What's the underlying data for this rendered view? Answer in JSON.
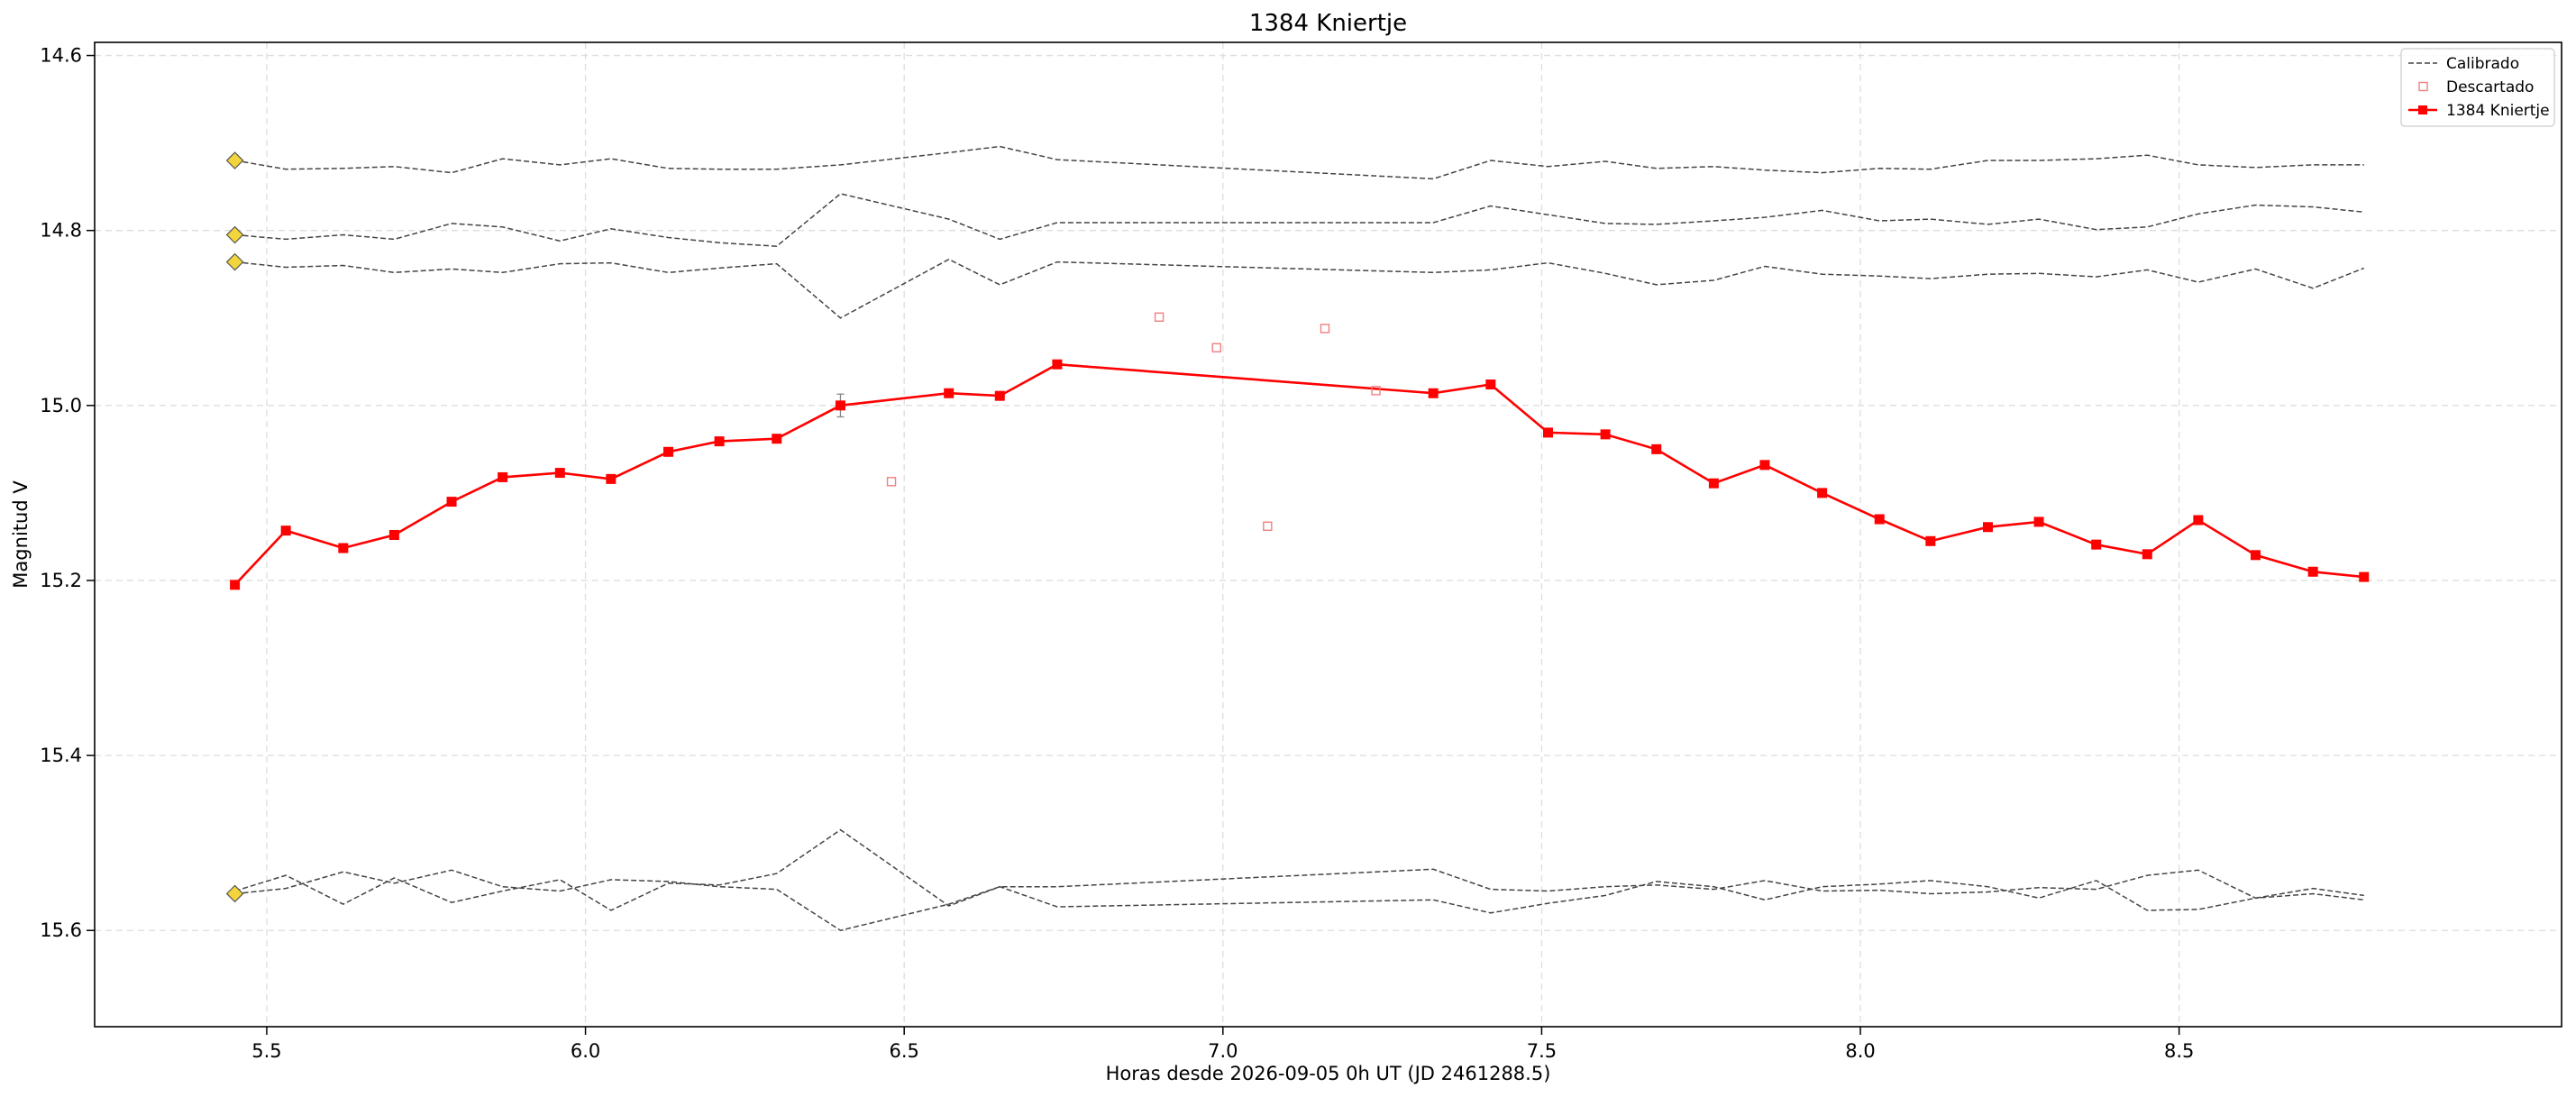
{
  "chart_data": {
    "type": "line",
    "title": "1384 Kniertje",
    "xlabel": "Horas desde 2026-09-05 0h UT (JD 2461288.5)",
    "ylabel": "Magnitud V",
    "xlim": [
      5.23,
      9.1
    ],
    "ylim": [
      15.71,
      14.585
    ],
    "y_inverted": true,
    "xticks": [
      5.5,
      6.0,
      6.5,
      7.0,
      7.5,
      8.0,
      8.5
    ],
    "xtick_labels": [
      "5.5",
      "6.0",
      "6.5",
      "7.0",
      "7.5",
      "8.0",
      "8.5"
    ],
    "yticks": [
      14.6,
      14.8,
      15.0,
      15.2,
      15.4,
      15.6
    ],
    "ytick_labels": [
      "14.6",
      "14.8",
      "15.0",
      "15.2",
      "15.4",
      "15.6"
    ],
    "grid": true,
    "legend_position": "top-right",
    "legend": [
      {
        "label": "Calibrado",
        "style": "dashed-line",
        "color": "#444444"
      },
      {
        "label": "Descartado",
        "style": "hollow-square",
        "color": "#f08080"
      },
      {
        "label": "1384 Kniertje",
        "style": "line-square",
        "color": "#ff0000"
      }
    ],
    "colors": {
      "target": "#ff0000",
      "discarded": "#f08080",
      "comparison": "#444444",
      "reference_marker": "#f2d53c",
      "grid": "#dddddd"
    },
    "target_series": {
      "name": "1384 Kniertje",
      "x": [
        5.45,
        5.53,
        5.62,
        5.7,
        5.79,
        5.87,
        5.96,
        6.04,
        6.13,
        6.21,
        6.3,
        6.4,
        6.57,
        6.65,
        6.74,
        7.33,
        7.42,
        7.51,
        7.6,
        7.68,
        7.77,
        7.85,
        7.94,
        8.03,
        8.11,
        8.2,
        8.28,
        8.37,
        8.45,
        8.53,
        8.62,
        8.71,
        8.79
      ],
      "y": [
        15.205,
        15.143,
        15.163,
        15.148,
        15.11,
        15.082,
        15.077,
        15.084,
        15.053,
        15.041,
        15.038,
        15.0,
        14.986,
        14.989,
        14.953,
        14.986,
        14.976,
        15.031,
        15.033,
        15.05,
        15.089,
        15.068,
        15.1,
        15.13,
        15.155,
        15.139,
        15.133,
        15.159,
        15.17,
        15.131,
        15.171,
        15.19,
        15.196
      ],
      "error_bars": [
        {
          "x": 6.4,
          "y": 15.0,
          "err": 0.013
        }
      ]
    },
    "discarded": {
      "name": "Descartado",
      "x": [
        6.48,
        6.9,
        6.99,
        7.07,
        7.16,
        7.24
      ],
      "y": [
        15.087,
        14.899,
        14.934,
        15.138,
        14.912,
        14.983
      ]
    },
    "comparison_series": [
      {
        "x": [
          5.45,
          5.53,
          5.62,
          5.7,
          5.79,
          5.87,
          5.96,
          6.04,
          6.13,
          6.21,
          6.3,
          6.4,
          6.57,
          6.65,
          6.74,
          7.33,
          7.42,
          7.51,
          7.6,
          7.68,
          7.77,
          7.85,
          7.94,
          8.03,
          8.11,
          8.2,
          8.28,
          8.37,
          8.45,
          8.53,
          8.62,
          8.71,
          8.79
        ],
        "y": [
          14.72,
          14.73,
          14.729,
          14.727,
          14.734,
          14.718,
          14.725,
          14.718,
          14.729,
          14.73,
          14.73,
          14.725,
          14.711,
          14.704,
          14.719,
          14.741,
          14.72,
          14.727,
          14.721,
          14.729,
          14.727,
          14.731,
          14.734,
          14.729,
          14.73,
          14.72,
          14.72,
          14.718,
          14.714,
          14.725,
          14.728,
          14.725,
          14.725
        ]
      },
      {
        "x": [
          5.45,
          5.53,
          5.62,
          5.7,
          5.79,
          5.87,
          5.96,
          6.04,
          6.13,
          6.21,
          6.3,
          6.4,
          6.57,
          6.65,
          6.74,
          7.33,
          7.42,
          7.51,
          7.6,
          7.68,
          7.77,
          7.85,
          7.94,
          8.03,
          8.11,
          8.2,
          8.28,
          8.37,
          8.45,
          8.53,
          8.62,
          8.71,
          8.79
        ],
        "y": [
          14.805,
          14.81,
          14.805,
          14.81,
          14.792,
          14.796,
          14.812,
          14.798,
          14.808,
          14.814,
          14.818,
          14.758,
          14.787,
          14.81,
          14.791,
          14.791,
          14.772,
          14.782,
          14.792,
          14.793,
          14.789,
          14.785,
          14.777,
          14.789,
          14.787,
          14.793,
          14.787,
          14.799,
          14.796,
          14.781,
          14.771,
          14.773,
          14.779
        ]
      },
      {
        "x": [
          5.45,
          5.53,
          5.62,
          5.7,
          5.79,
          5.87,
          5.96,
          6.04,
          6.13,
          6.21,
          6.3,
          6.4,
          6.57,
          6.65,
          6.74,
          7.33,
          7.42,
          7.51,
          7.6,
          7.68,
          7.77,
          7.85,
          7.94,
          8.03,
          8.11,
          8.2,
          8.28,
          8.37,
          8.45,
          8.53,
          8.62,
          8.71,
          8.79
        ],
        "y": [
          14.836,
          14.842,
          14.84,
          14.848,
          14.844,
          14.848,
          14.838,
          14.837,
          14.848,
          14.843,
          14.838,
          14.9,
          14.833,
          14.862,
          14.836,
          14.848,
          14.845,
          14.837,
          14.849,
          14.862,
          14.857,
          14.841,
          14.85,
          14.852,
          14.855,
          14.85,
          14.849,
          14.853,
          14.845,
          14.859,
          14.844,
          14.866,
          14.843
        ]
      },
      {
        "x": [
          5.45,
          5.53,
          5.62,
          5.7,
          5.79,
          5.87,
          5.96,
          6.04,
          6.13,
          6.21,
          6.3,
          6.4,
          6.57,
          6.65,
          6.74,
          7.33,
          7.42,
          7.51,
          7.6,
          7.68,
          7.77,
          7.85,
          7.94,
          8.03,
          8.11,
          8.2,
          8.28,
          8.37,
          8.45,
          8.53,
          8.62,
          8.71,
          8.79
        ],
        "y": [
          15.555,
          15.537,
          15.57,
          15.54,
          15.568,
          15.555,
          15.542,
          15.577,
          15.546,
          15.548,
          15.535,
          15.485,
          15.572,
          15.55,
          15.573,
          15.565,
          15.58,
          15.569,
          15.56,
          15.544,
          15.55,
          15.565,
          15.55,
          15.547,
          15.543,
          15.55,
          15.563,
          15.543,
          15.577,
          15.576,
          15.563,
          15.552,
          15.56
        ]
      },
      {
        "x": [
          5.45,
          5.53,
          5.62,
          5.7,
          5.79,
          5.87,
          5.96,
          6.04,
          6.13,
          6.21,
          6.3,
          6.4,
          6.57,
          6.65,
          6.74,
          7.33,
          7.42,
          7.51,
          7.6,
          7.68,
          7.77,
          7.85,
          7.94,
          8.03,
          8.11,
          8.2,
          8.28,
          8.37,
          8.45,
          8.53,
          8.62,
          8.71,
          8.79
        ],
        "y": [
          15.558,
          15.552,
          15.533,
          15.546,
          15.531,
          15.55,
          15.555,
          15.542,
          15.544,
          15.55,
          15.553,
          15.6,
          15.57,
          15.55,
          15.55,
          15.53,
          15.553,
          15.555,
          15.55,
          15.548,
          15.553,
          15.543,
          15.555,
          15.554,
          15.558,
          15.556,
          15.551,
          15.553,
          15.537,
          15.531,
          15.563,
          15.558,
          15.565
        ]
      }
    ],
    "reference_markers": {
      "x": [
        5.45,
        5.45,
        5.45,
        5.45
      ],
      "y": [
        14.72,
        14.805,
        14.836,
        15.558
      ]
    }
  }
}
